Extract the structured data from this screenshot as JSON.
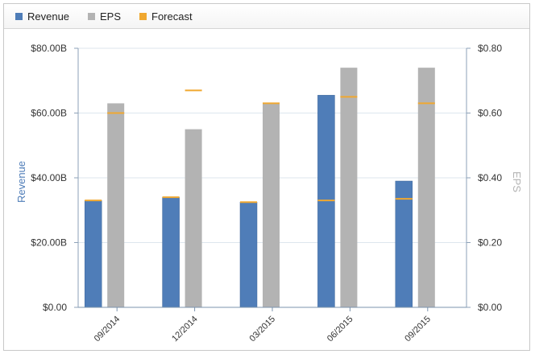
{
  "chart_data": {
    "type": "bar",
    "categories": [
      "09/2014",
      "12/2014",
      "03/2015",
      "06/2015",
      "09/2015"
    ],
    "series": [
      {
        "name": "Revenue",
        "axis": "left",
        "color": "#4f7db8",
        "values": [
          33.0,
          34.0,
          32.5,
          65.5,
          39.0
        ]
      },
      {
        "name": "EPS",
        "axis": "right",
        "color": "#b3b3b3",
        "values": [
          0.63,
          0.55,
          0.63,
          0.74,
          0.74
        ]
      }
    ],
    "forecast": {
      "name": "Forecast",
      "color": "#f0a830",
      "revenue": [
        33.0,
        34.0,
        32.5,
        33.0,
        33.5
      ],
      "eps": [
        0.6,
        0.67,
        0.63,
        0.65,
        0.63
      ]
    },
    "y_left": {
      "label": "Revenue",
      "label_color": "#4f7db8",
      "range": [
        0,
        80
      ],
      "ticks": [
        "$0.00",
        "$20.00B",
        "$40.00B",
        "$60.00B",
        "$80.00B"
      ]
    },
    "y_right": {
      "label": "EPS",
      "label_color": "#b3b3b3",
      "range": [
        0,
        0.8
      ],
      "ticks": [
        "$0.00",
        "$0.20",
        "$0.40",
        "$0.60",
        "$0.80"
      ]
    },
    "grid": true,
    "legend_position": "top-left"
  },
  "legend": [
    {
      "label": "Revenue",
      "color": "#4f7db8"
    },
    {
      "label": "EPS",
      "color": "#b3b3b3"
    },
    {
      "label": "Forecast",
      "color": "#f0a830"
    }
  ]
}
